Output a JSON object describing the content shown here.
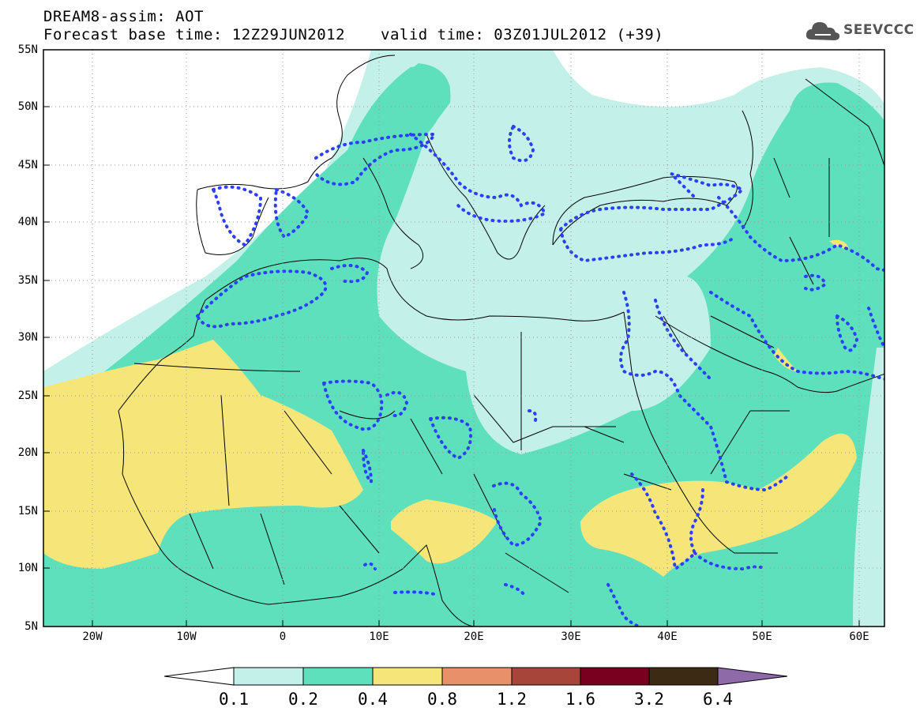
{
  "header": {
    "title": "DREAM8-assim: AOT",
    "base_time": "Forecast base time: 12Z29JUN2012",
    "valid_time": "valid time: 03Z01JUL2012 (+39)"
  },
  "logo": {
    "text": "SEEVCCC",
    "icon": "cloud-icon"
  },
  "map": {
    "projection": "lat-lon",
    "lon_range": [
      -25,
      65
    ],
    "lat_range": [
      5,
      55
    ],
    "lat_labels": [
      "55N",
      "50N",
      "45N",
      "40N",
      "35N",
      "30N",
      "25N",
      "20N",
      "15N",
      "10N",
      "5N"
    ],
    "lon_labels": [
      "20W",
      "10W",
      "0",
      "10E",
      "20E",
      "30E",
      "40E",
      "50E",
      "60E"
    ],
    "grid": "dotted"
  },
  "colorbar": {
    "labels": [
      "0.1",
      "0.2",
      "0.4",
      "0.8",
      "1.2",
      "1.6",
      "3.2",
      "6.4"
    ],
    "colors": [
      "#ffffff",
      "#c4f0ea",
      "#5fe0bd",
      "#f6e67a",
      "#e8906a",
      "#a8453a",
      "#7a0020",
      "#3d2a14",
      "#8e6aa8"
    ]
  },
  "colors": {
    "aot_0_1": "#c4f0ea",
    "aot_0_2": "#5fe0bd",
    "aot_0_4": "#f6e67a",
    "dotted_contour": "#2b3fff"
  }
}
